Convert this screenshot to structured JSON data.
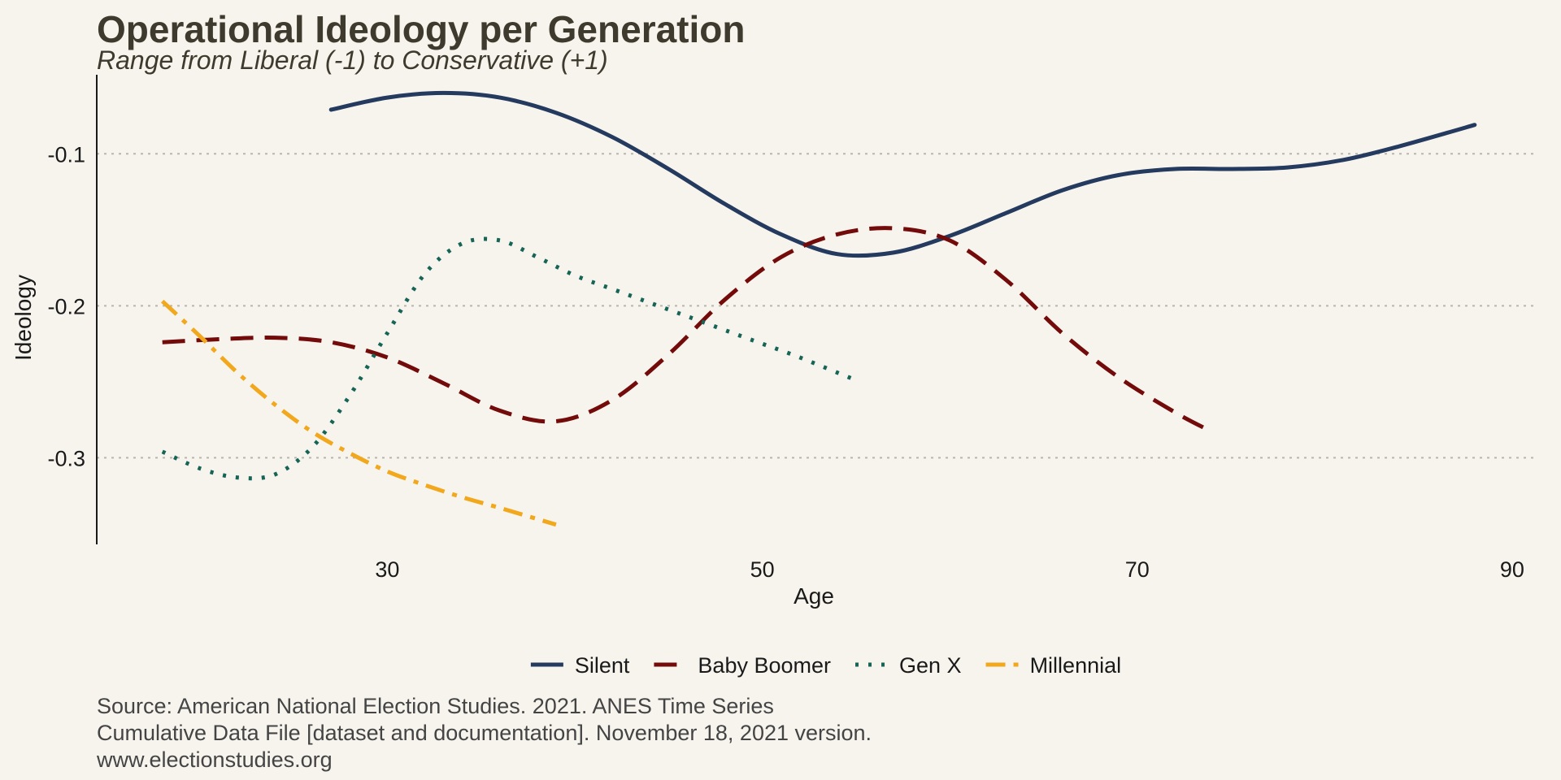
{
  "chart_data": {
    "type": "line",
    "title": "Operational Ideology per Generation",
    "subtitle": "Range from Liberal (-1) to Conservative (+1)",
    "xlabel": "Age",
    "ylabel": "Ideology",
    "xlim": [
      14.5,
      91
    ],
    "ylim": [
      -0.357,
      -0.048
    ],
    "x_ticks": [
      {
        "value": 30,
        "label": "30"
      },
      {
        "value": 50,
        "label": "50"
      },
      {
        "value": 70,
        "label": "70"
      },
      {
        "value": 90,
        "label": "90"
      }
    ],
    "y_ticks": [
      {
        "value": -0.1,
        "label": "-0.1"
      },
      {
        "value": -0.2,
        "label": "-0.2"
      },
      {
        "value": -0.3,
        "label": "-0.3"
      }
    ],
    "grid": "horizontal dotted",
    "legend_position": "bottom",
    "series": [
      {
        "name": "Silent",
        "color": "#243a5e",
        "dash": "solid",
        "x": [
          27,
          30,
          33,
          36,
          39,
          42,
          45,
          48,
          51,
          54,
          57,
          60,
          63,
          66,
          69,
          72,
          75,
          78,
          81,
          84,
          88
        ],
        "y": [
          -0.071,
          -0.063,
          -0.06,
          -0.063,
          -0.073,
          -0.089,
          -0.11,
          -0.133,
          -0.153,
          -0.166,
          -0.165,
          -0.154,
          -0.139,
          -0.124,
          -0.114,
          -0.11,
          -0.11,
          -0.109,
          -0.104,
          -0.095,
          -0.081
        ]
      },
      {
        "name": "Baby Boomer",
        "color": "#730b0b",
        "dash": "long",
        "x": [
          18,
          21,
          24,
          27,
          30,
          33,
          36,
          39,
          42,
          45,
          48,
          51,
          54,
          57,
          60,
          63,
          66,
          69,
          72,
          74
        ],
        "y": [
          -0.224,
          -0.222,
          -0.221,
          -0.224,
          -0.234,
          -0.251,
          -0.269,
          -0.276,
          -0.262,
          -0.232,
          -0.196,
          -0.168,
          -0.153,
          -0.149,
          -0.157,
          -0.183,
          -0.218,
          -0.247,
          -0.27,
          -0.283
        ]
      },
      {
        "name": "Gen X",
        "color": "#156456",
        "dash": "dotted",
        "x": [
          18,
          20,
          22,
          24,
          26,
          28,
          30,
          32,
          34,
          36,
          38,
          40,
          42,
          44,
          46,
          48,
          50,
          52,
          55
        ],
        "y": [
          -0.296,
          -0.307,
          -0.313,
          -0.311,
          -0.293,
          -0.259,
          -0.218,
          -0.179,
          -0.159,
          -0.157,
          -0.168,
          -0.18,
          -0.189,
          -0.198,
          -0.207,
          -0.216,
          -0.225,
          -0.234,
          -0.249
        ]
      },
      {
        "name": "Millennial",
        "color": "#f2a81d",
        "dash": "dotdash",
        "x": [
          18,
          20,
          22,
          24,
          26,
          28,
          30,
          32,
          34,
          36,
          39
        ],
        "y": [
          -0.197,
          -0.22,
          -0.244,
          -0.265,
          -0.283,
          -0.297,
          -0.309,
          -0.318,
          -0.326,
          -0.333,
          -0.344
        ]
      }
    ]
  },
  "caption": {
    "line1": "Source: American National Election Studies. 2021. ANES Time Series",
    "line2": "Cumulative Data File [dataset and documentation]. November 18, 2021 version.",
    "line3": "www.electionstudies.org"
  }
}
